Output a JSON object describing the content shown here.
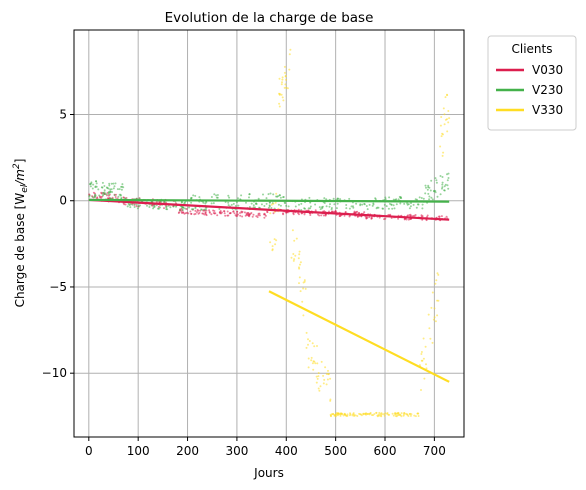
{
  "chart_data": {
    "type": "scatter",
    "title": "Evolution de la charge de base",
    "xlabel": "Jours",
    "ylabel_prefix": "Charge de base [W",
    "ylabel_sub": "el",
    "ylabel_mid": "/m",
    "ylabel_sup": "2",
    "ylabel_suffix": "]",
    "xlim": [
      -30,
      760
    ],
    "ylim": [
      -13.7,
      9.9
    ],
    "xticks": [
      0,
      100,
      200,
      300,
      400,
      500,
      600,
      700
    ],
    "yticks": [
      5,
      0,
      -5,
      -10
    ],
    "ytick_labels": [
      "5",
      "0",
      "−5",
      "−10"
    ],
    "grid": true,
    "legend": {
      "title": "Clients",
      "placement": "outside-top-right"
    },
    "series": [
      {
        "name": "V030",
        "color": "#dc1e4e",
        "trend": [
          [
            0,
            0.05
          ],
          [
            730,
            -1.1
          ]
        ],
        "scatter_segments": [
          {
            "x0": 0,
            "x1": 60,
            "y0": 0.3,
            "y1": 0.15,
            "spread": 0.25,
            "n": 45
          },
          {
            "x0": 60,
            "x1": 180,
            "y0": 0.0,
            "y1": -0.25,
            "spread": 0.25,
            "n": 60
          },
          {
            "x0": 180,
            "x1": 360,
            "y0": -0.6,
            "y1": -0.85,
            "spread": 0.15,
            "n": 110
          },
          {
            "x0": 360,
            "x1": 560,
            "y0": -0.6,
            "y1": -0.8,
            "spread": 0.15,
            "n": 110
          },
          {
            "x0": 560,
            "x1": 730,
            "y0": -0.9,
            "y1": -1.0,
            "spread": 0.15,
            "n": 90
          }
        ]
      },
      {
        "name": "V230",
        "color": "#44b14a",
        "trend": [
          [
            0,
            0.05
          ],
          [
            730,
            -0.05
          ]
        ],
        "scatter_segments": [
          {
            "x0": 0,
            "x1": 70,
            "y0": 0.7,
            "y1": 0.5,
            "spread": 0.5,
            "n": 70
          },
          {
            "x0": 70,
            "x1": 200,
            "y0": -0.1,
            "y1": -0.3,
            "spread": 0.3,
            "n": 90
          },
          {
            "x0": 200,
            "x1": 400,
            "y0": -0.1,
            "y1": 0.0,
            "spread": 0.45,
            "n": 110
          },
          {
            "x0": 400,
            "x1": 680,
            "y0": -0.2,
            "y1": -0.1,
            "spread": 0.35,
            "n": 130
          },
          {
            "x0": 680,
            "x1": 730,
            "y0": 0.4,
            "y1": 1.2,
            "spread": 0.6,
            "n": 40
          }
        ]
      },
      {
        "name": "V330",
        "color": "#ffdd22",
        "trend": [
          [
            365,
            -5.25
          ],
          [
            730,
            -10.5
          ]
        ],
        "scatter_segments": [
          {
            "x0": 365,
            "x1": 385,
            "y0": -2.0,
            "y1": -0.5,
            "spread": 1.5,
            "n": 15
          },
          {
            "x0": 385,
            "x1": 410,
            "y0": 6.0,
            "y1": 8.0,
            "spread": 1.0,
            "n": 25
          },
          {
            "x0": 410,
            "x1": 440,
            "y0": -2.0,
            "y1": -6.0,
            "spread": 1.5,
            "n": 25
          },
          {
            "x0": 440,
            "x1": 490,
            "y0": -8.5,
            "y1": -11.0,
            "spread": 1.2,
            "n": 40
          },
          {
            "x0": 490,
            "x1": 670,
            "y0": -12.4,
            "y1": -12.4,
            "spread": 0.1,
            "n": 120
          },
          {
            "x0": 670,
            "x1": 710,
            "y0": -10.5,
            "y1": -5.0,
            "spread": 1.5,
            "n": 30
          },
          {
            "x0": 710,
            "x1": 730,
            "y0": 3.0,
            "y1": 6.0,
            "spread": 1.5,
            "n": 20
          }
        ]
      }
    ]
  }
}
